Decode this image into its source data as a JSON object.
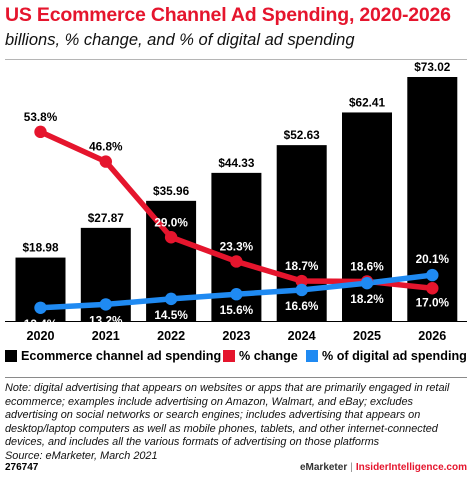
{
  "title": "US Ecommerce Channel Ad Spending, 2020-2026",
  "subtitle": "billions, % change, and % of digital ad spending",
  "colors": {
    "bars": "#000000",
    "change": "#e5152d",
    "share": "#1f8af2"
  },
  "chart_data": {
    "type": "bar",
    "categories": [
      "2020",
      "2021",
      "2022",
      "2023",
      "2024",
      "2025",
      "2026"
    ],
    "series": [
      {
        "name": "Ecommerce channel ad spending",
        "kind": "bar",
        "values": [
          18.98,
          27.87,
          35.96,
          44.33,
          52.63,
          62.41,
          73.02
        ],
        "labels": [
          "$18.98",
          "$27.87",
          "$35.96",
          "$44.33",
          "$52.63",
          "$62.41",
          "$73.02"
        ]
      },
      {
        "name": "% change",
        "kind": "line",
        "values": [
          53.8,
          46.8,
          29.0,
          23.3,
          18.7,
          18.6,
          17.0
        ],
        "labels": [
          "53.8%",
          "46.8%",
          "29.0%",
          "23.3%",
          "18.7%",
          "18.6%",
          "17.0%"
        ]
      },
      {
        "name": "% of digital ad spending",
        "kind": "line",
        "values": [
          12.4,
          13.2,
          14.5,
          15.6,
          16.6,
          18.2,
          20.1
        ],
        "labels": [
          "12.4%",
          "13.2%",
          "14.5%",
          "15.6%",
          "16.6%",
          "18.2%",
          "20.1%"
        ]
      }
    ],
    "xlabel": "",
    "ylabel": "",
    "grid": false,
    "legend": "bottom"
  },
  "note": "Note: digital advertising that appears on websites or apps that are primarily engaged in retail ecommerce; examples include advertising on Amazon, Walmart, and eBay; excludes advertising on social networks or search engines; includes advertising that appears on desktop/laptop computers as well as mobile phones, tablets, and other internet-connected devices, and includes all the various formats of advertising on those platforms",
  "source": "Source: eMarketer, March 2021",
  "footer": {
    "chart_id": "276747",
    "brand": "eMarketer",
    "separator": "|",
    "brand2": "InsiderIntelligence.com"
  }
}
